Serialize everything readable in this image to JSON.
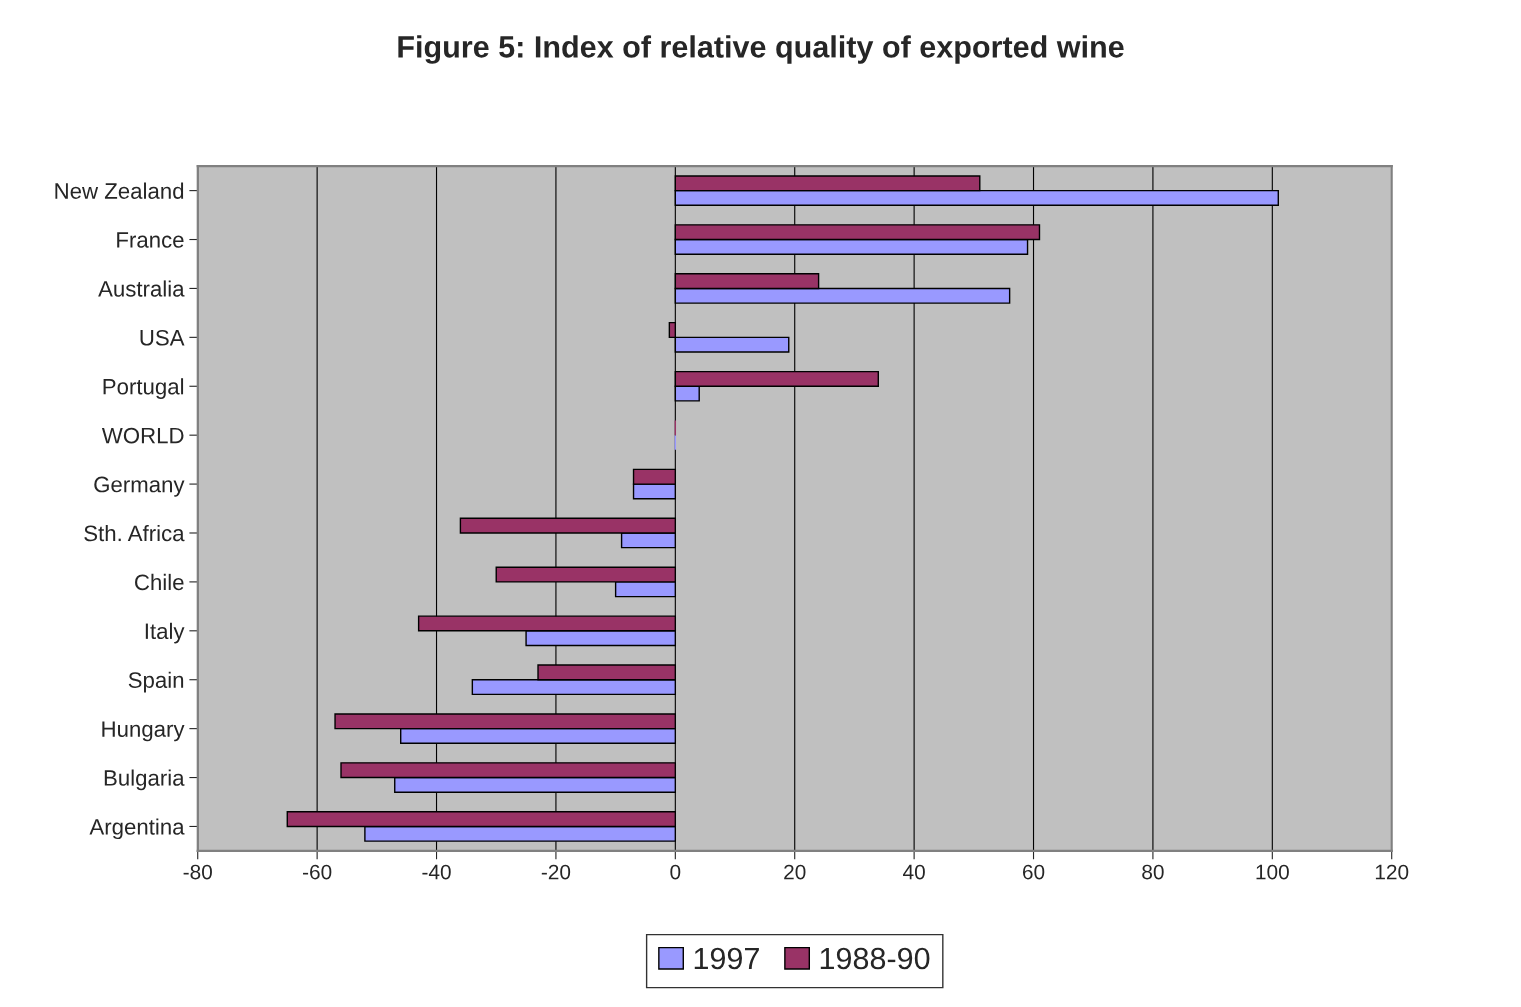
{
  "chart_data": {
    "type": "bar",
    "orientation": "horizontal",
    "title": "Figure 5: Index of relative quality of exported wine",
    "categories": [
      "New Zealand",
      "France",
      "Australia",
      "USA",
      "Portugal",
      "WORLD",
      "Germany",
      "Sth. Africa",
      "Chile",
      "Italy",
      "Spain",
      "Hungary",
      "Bulgaria",
      "Argentina"
    ],
    "series": [
      {
        "name": "1997",
        "color": "#9999ff",
        "values": [
          101,
          59,
          56,
          19,
          4,
          0,
          -7,
          -9,
          -10,
          -25,
          -34,
          -46,
          -47,
          -52
        ]
      },
      {
        "name": "1988-90",
        "color": "#993366",
        "values": [
          51,
          61,
          24,
          -1,
          34,
          0,
          -7,
          -36,
          -30,
          -43,
          -23,
          -57,
          -56,
          -65
        ]
      }
    ],
    "xlim": [
      -80,
      120
    ],
    "xticks": [
      -80,
      -60,
      -40,
      -20,
      0,
      20,
      40,
      60,
      80,
      100,
      120
    ],
    "grid": "x",
    "legend": "bottom"
  }
}
